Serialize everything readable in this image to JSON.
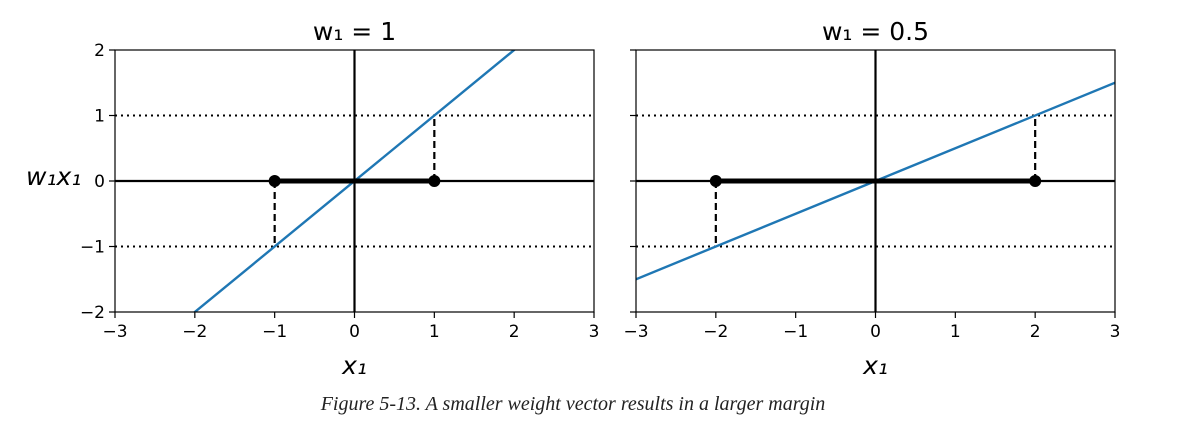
{
  "caption": "Figure 5-13. A smaller weight vector results in a larger margin",
  "colors": {
    "decision_line": "#1f77b4",
    "axes": "#000000"
  },
  "chart_data": [
    {
      "type": "line",
      "title": "w₁ = 1",
      "xlabel": "x₁",
      "ylabel": "w₁x₁",
      "xlim": [
        -3,
        3
      ],
      "ylim": [
        -2,
        2
      ],
      "xticks": [
        -3,
        -2,
        -1,
        0,
        1,
        2,
        3
      ],
      "yticks": [
        -2,
        -1,
        0,
        1,
        2
      ],
      "xtick_labels": [
        "−3",
        "−2",
        "−1",
        "0",
        "1",
        "2",
        "3"
      ],
      "ytick_labels": [
        "−2",
        "−1",
        "0",
        "1",
        "2"
      ],
      "grid": false,
      "series": [
        {
          "x": [
            -3,
            3
          ],
          "y": [
            -3,
            3
          ],
          "style": "solid",
          "color": "#1f77b4"
        }
      ],
      "margin_lines": [
        -1,
        1
      ],
      "margin_segment": {
        "x": [
          -1,
          1
        ],
        "y": [
          0,
          0
        ]
      },
      "margin_points": [
        {
          "x": -1,
          "y": 0
        },
        {
          "x": 1,
          "y": 0
        }
      ],
      "drop_lines": [
        {
          "x": -1,
          "y": [
            0,
            -1
          ]
        },
        {
          "x": 1,
          "y": [
            0,
            1
          ]
        }
      ]
    },
    {
      "type": "line",
      "title": "w₁ = 0.5",
      "xlabel": "x₁",
      "ylabel": "",
      "xlim": [
        -3,
        3
      ],
      "ylim": [
        -2,
        2
      ],
      "xticks": [
        -3,
        -2,
        -1,
        0,
        1,
        2,
        3
      ],
      "yticks": [
        -2,
        -1,
        0,
        1,
        2
      ],
      "xtick_labels": [
        "−3",
        "−2",
        "−1",
        "0",
        "1",
        "2",
        "3"
      ],
      "ytick_labels": [],
      "grid": false,
      "series": [
        {
          "x": [
            -3,
            3
          ],
          "y": [
            -1.5,
            1.5
          ],
          "style": "solid",
          "color": "#1f77b4"
        }
      ],
      "margin_lines": [
        -1,
        1
      ],
      "margin_segment": {
        "x": [
          -2,
          2
        ],
        "y": [
          0,
          0
        ]
      },
      "margin_points": [
        {
          "x": -2,
          "y": 0
        },
        {
          "x": 2,
          "y": 0
        }
      ],
      "drop_lines": [
        {
          "x": -2,
          "y": [
            0,
            -1
          ]
        },
        {
          "x": 2,
          "y": [
            0,
            1
          ]
        }
      ]
    }
  ]
}
